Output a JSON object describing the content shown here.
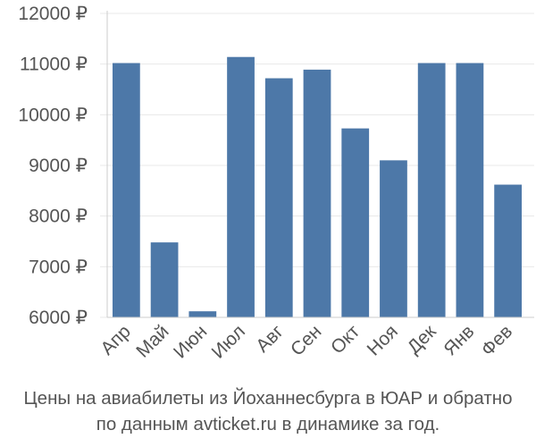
{
  "chart_data": {
    "type": "bar",
    "categories": [
      "Апр",
      "Май",
      "Июн",
      "Июл",
      "Авг",
      "Сен",
      "Окт",
      "Ноя",
      "Дек",
      "Янв",
      "Фев"
    ],
    "values": [
      11020,
      7480,
      6120,
      11140,
      10720,
      10890,
      9730,
      9100,
      11020,
      11020,
      8620
    ],
    "ylim": [
      6000,
      12000
    ],
    "yticks": [
      6000,
      7000,
      8000,
      9000,
      10000,
      11000,
      12000
    ],
    "ytick_labels": [
      "6000 ₽",
      "7000 ₽",
      "8000 ₽",
      "9000 ₽",
      "10000 ₽",
      "11000 ₽",
      "12000 ₽"
    ],
    "grid": true,
    "bar_color": "#4d78a8"
  },
  "caption": {
    "line1": "Цены на авиабилеты из Йоханнесбурга в ЮАР и обратно",
    "line2": "по данным avticket.ru в динамике за год."
  }
}
